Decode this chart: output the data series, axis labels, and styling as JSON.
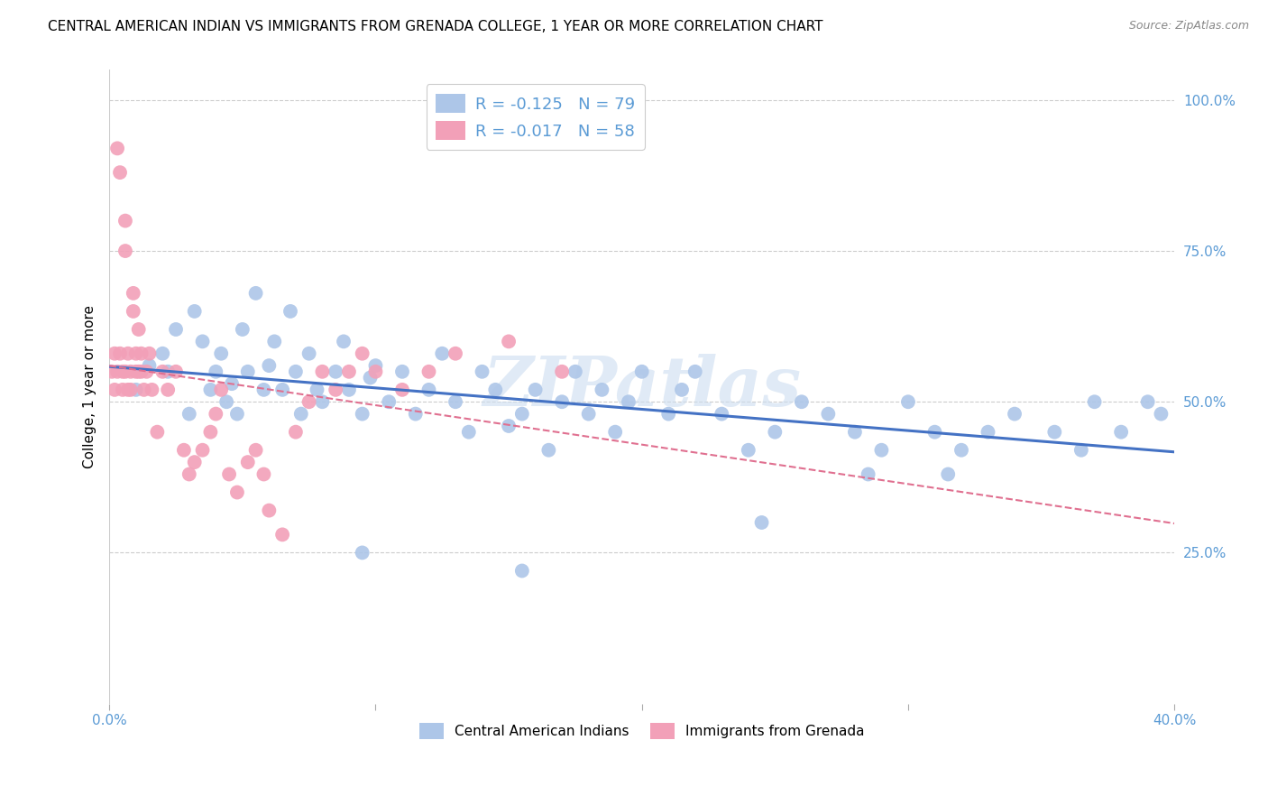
{
  "title": "CENTRAL AMERICAN INDIAN VS IMMIGRANTS FROM GRENADA COLLEGE, 1 YEAR OR MORE CORRELATION CHART",
  "source": "Source: ZipAtlas.com",
  "ylabel": "College, 1 year or more",
  "ytick_labels": [
    "100.0%",
    "75.0%",
    "50.0%",
    "25.0%"
  ],
  "ytick_values": [
    1.0,
    0.75,
    0.5,
    0.25
  ],
  "xlim": [
    0.0,
    0.4
  ],
  "ylim": [
    0.0,
    1.05
  ],
  "legend_R1": "R = -0.125",
  "legend_N1": "N = 79",
  "legend_R2": "R = -0.017",
  "legend_N2": "N = 58",
  "color_blue": "#adc6e8",
  "color_pink": "#f2a0b8",
  "line_blue": "#4472c4",
  "line_pink": "#e07090",
  "axis_color": "#5b9bd5",
  "watermark": "ZIPatlas",
  "blue_x": [
    0.01,
    0.015,
    0.02,
    0.022,
    0.025,
    0.03,
    0.032,
    0.035,
    0.038,
    0.04,
    0.042,
    0.044,
    0.046,
    0.048,
    0.05,
    0.052,
    0.055,
    0.058,
    0.06,
    0.062,
    0.065,
    0.068,
    0.07,
    0.072,
    0.075,
    0.078,
    0.08,
    0.085,
    0.088,
    0.09,
    0.095,
    0.098,
    0.1,
    0.105,
    0.11,
    0.115,
    0.12,
    0.125,
    0.13,
    0.135,
    0.14,
    0.145,
    0.15,
    0.155,
    0.16,
    0.165,
    0.17,
    0.175,
    0.18,
    0.185,
    0.19,
    0.195,
    0.2,
    0.21,
    0.215,
    0.22,
    0.23,
    0.24,
    0.25,
    0.26,
    0.27,
    0.28,
    0.29,
    0.3,
    0.31,
    0.32,
    0.33,
    0.34,
    0.355,
    0.365,
    0.37,
    0.38,
    0.39,
    0.395,
    0.315,
    0.285,
    0.245,
    0.155,
    0.095
  ],
  "blue_y": [
    0.52,
    0.56,
    0.58,
    0.55,
    0.62,
    0.48,
    0.65,
    0.6,
    0.52,
    0.55,
    0.58,
    0.5,
    0.53,
    0.48,
    0.62,
    0.55,
    0.68,
    0.52,
    0.56,
    0.6,
    0.52,
    0.65,
    0.55,
    0.48,
    0.58,
    0.52,
    0.5,
    0.55,
    0.6,
    0.52,
    0.48,
    0.54,
    0.56,
    0.5,
    0.55,
    0.48,
    0.52,
    0.58,
    0.5,
    0.45,
    0.55,
    0.52,
    0.46,
    0.48,
    0.52,
    0.42,
    0.5,
    0.55,
    0.48,
    0.52,
    0.45,
    0.5,
    0.55,
    0.48,
    0.52,
    0.55,
    0.48,
    0.42,
    0.45,
    0.5,
    0.48,
    0.45,
    0.42,
    0.5,
    0.45,
    0.42,
    0.45,
    0.48,
    0.45,
    0.42,
    0.5,
    0.45,
    0.5,
    0.48,
    0.38,
    0.38,
    0.3,
    0.22,
    0.25
  ],
  "pink_x": [
    0.001,
    0.002,
    0.002,
    0.003,
    0.003,
    0.004,
    0.004,
    0.005,
    0.005,
    0.006,
    0.006,
    0.006,
    0.007,
    0.007,
    0.008,
    0.008,
    0.009,
    0.009,
    0.01,
    0.01,
    0.011,
    0.011,
    0.012,
    0.012,
    0.013,
    0.014,
    0.015,
    0.016,
    0.018,
    0.02,
    0.022,
    0.025,
    0.028,
    0.03,
    0.032,
    0.035,
    0.038,
    0.04,
    0.042,
    0.045,
    0.048,
    0.052,
    0.055,
    0.058,
    0.06,
    0.065,
    0.07,
    0.075,
    0.08,
    0.085,
    0.09,
    0.095,
    0.1,
    0.11,
    0.12,
    0.13,
    0.15,
    0.17
  ],
  "pink_y": [
    0.55,
    0.58,
    0.52,
    0.55,
    0.92,
    0.88,
    0.58,
    0.55,
    0.52,
    0.8,
    0.55,
    0.75,
    0.58,
    0.52,
    0.55,
    0.52,
    0.68,
    0.65,
    0.58,
    0.55,
    0.62,
    0.55,
    0.58,
    0.55,
    0.52,
    0.55,
    0.58,
    0.52,
    0.45,
    0.55,
    0.52,
    0.55,
    0.42,
    0.38,
    0.4,
    0.42,
    0.45,
    0.48,
    0.52,
    0.38,
    0.35,
    0.4,
    0.42,
    0.38,
    0.32,
    0.28,
    0.45,
    0.5,
    0.55,
    0.52,
    0.55,
    0.58,
    0.55,
    0.52,
    0.55,
    0.58,
    0.6,
    0.55
  ],
  "grid_color": "#cccccc",
  "title_fontsize": 11,
  "tick_label_color": "#5b9bd5",
  "legend_label_color": "#5b9bd5",
  "bottom_legend_labels": [
    "Central American Indians",
    "Immigrants from Grenada"
  ]
}
